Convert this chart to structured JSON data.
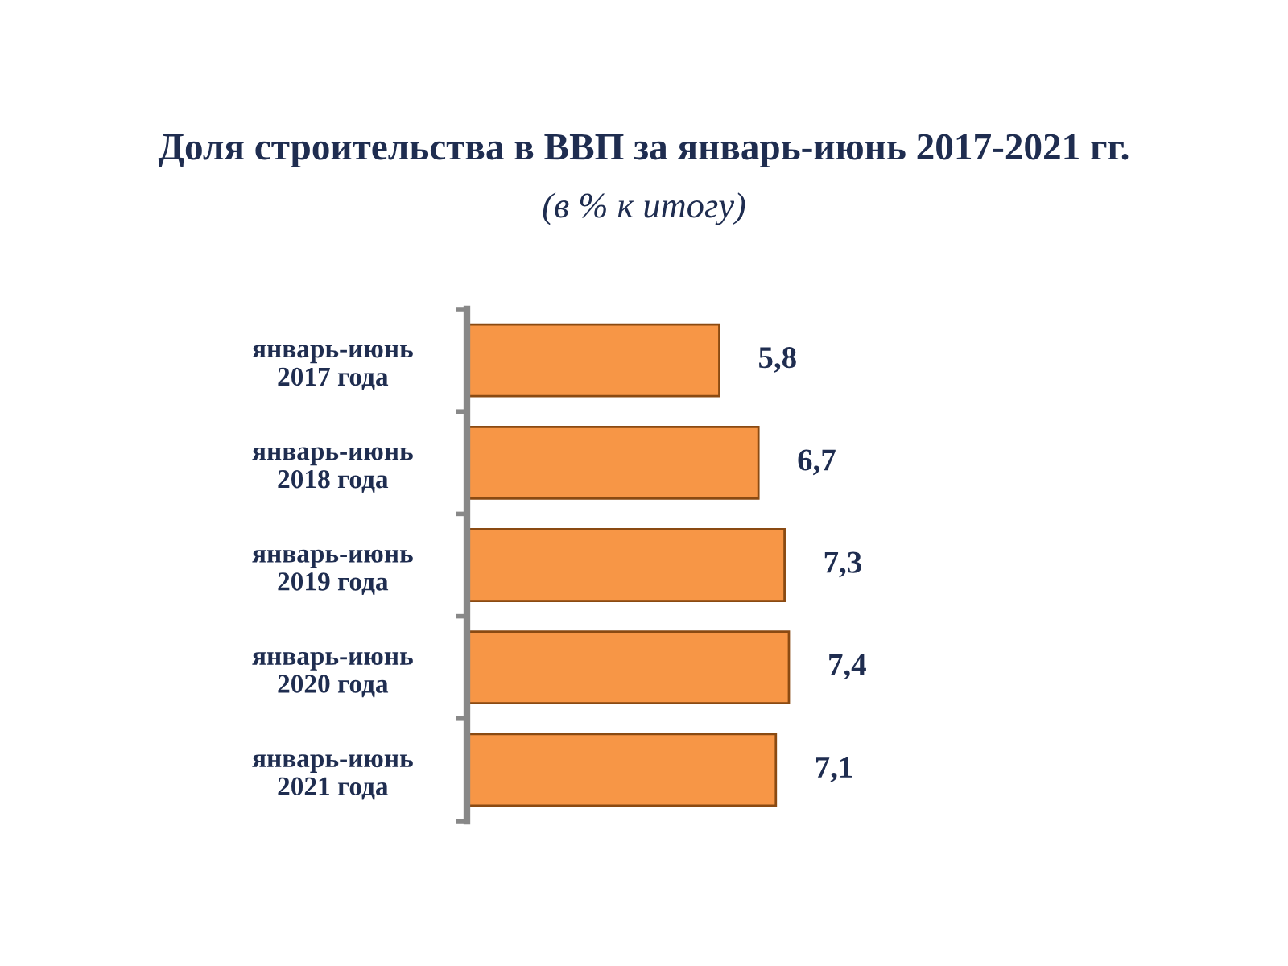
{
  "chart_data": {
    "type": "bar",
    "orientation": "horizontal",
    "title": "Доля строительства в ВВП за январь-июнь 2017-2021 гг.",
    "subtitle": "(в % к итогу)",
    "categories": [
      "январь-июнь\n2017 года",
      "январь-июнь\n2018 года",
      "январь-июнь\n2019 года",
      "январь-июнь\n2020 года",
      "январь-июнь\n2021 года"
    ],
    "values": [
      5.8,
      6.7,
      7.3,
      7.4,
      7.1
    ],
    "value_labels": [
      "5,8",
      "6,7",
      "7,3",
      "7,4",
      "7,1"
    ],
    "color": "#f79646",
    "grid": false,
    "legend": false,
    "tick_labels": "y"
  }
}
